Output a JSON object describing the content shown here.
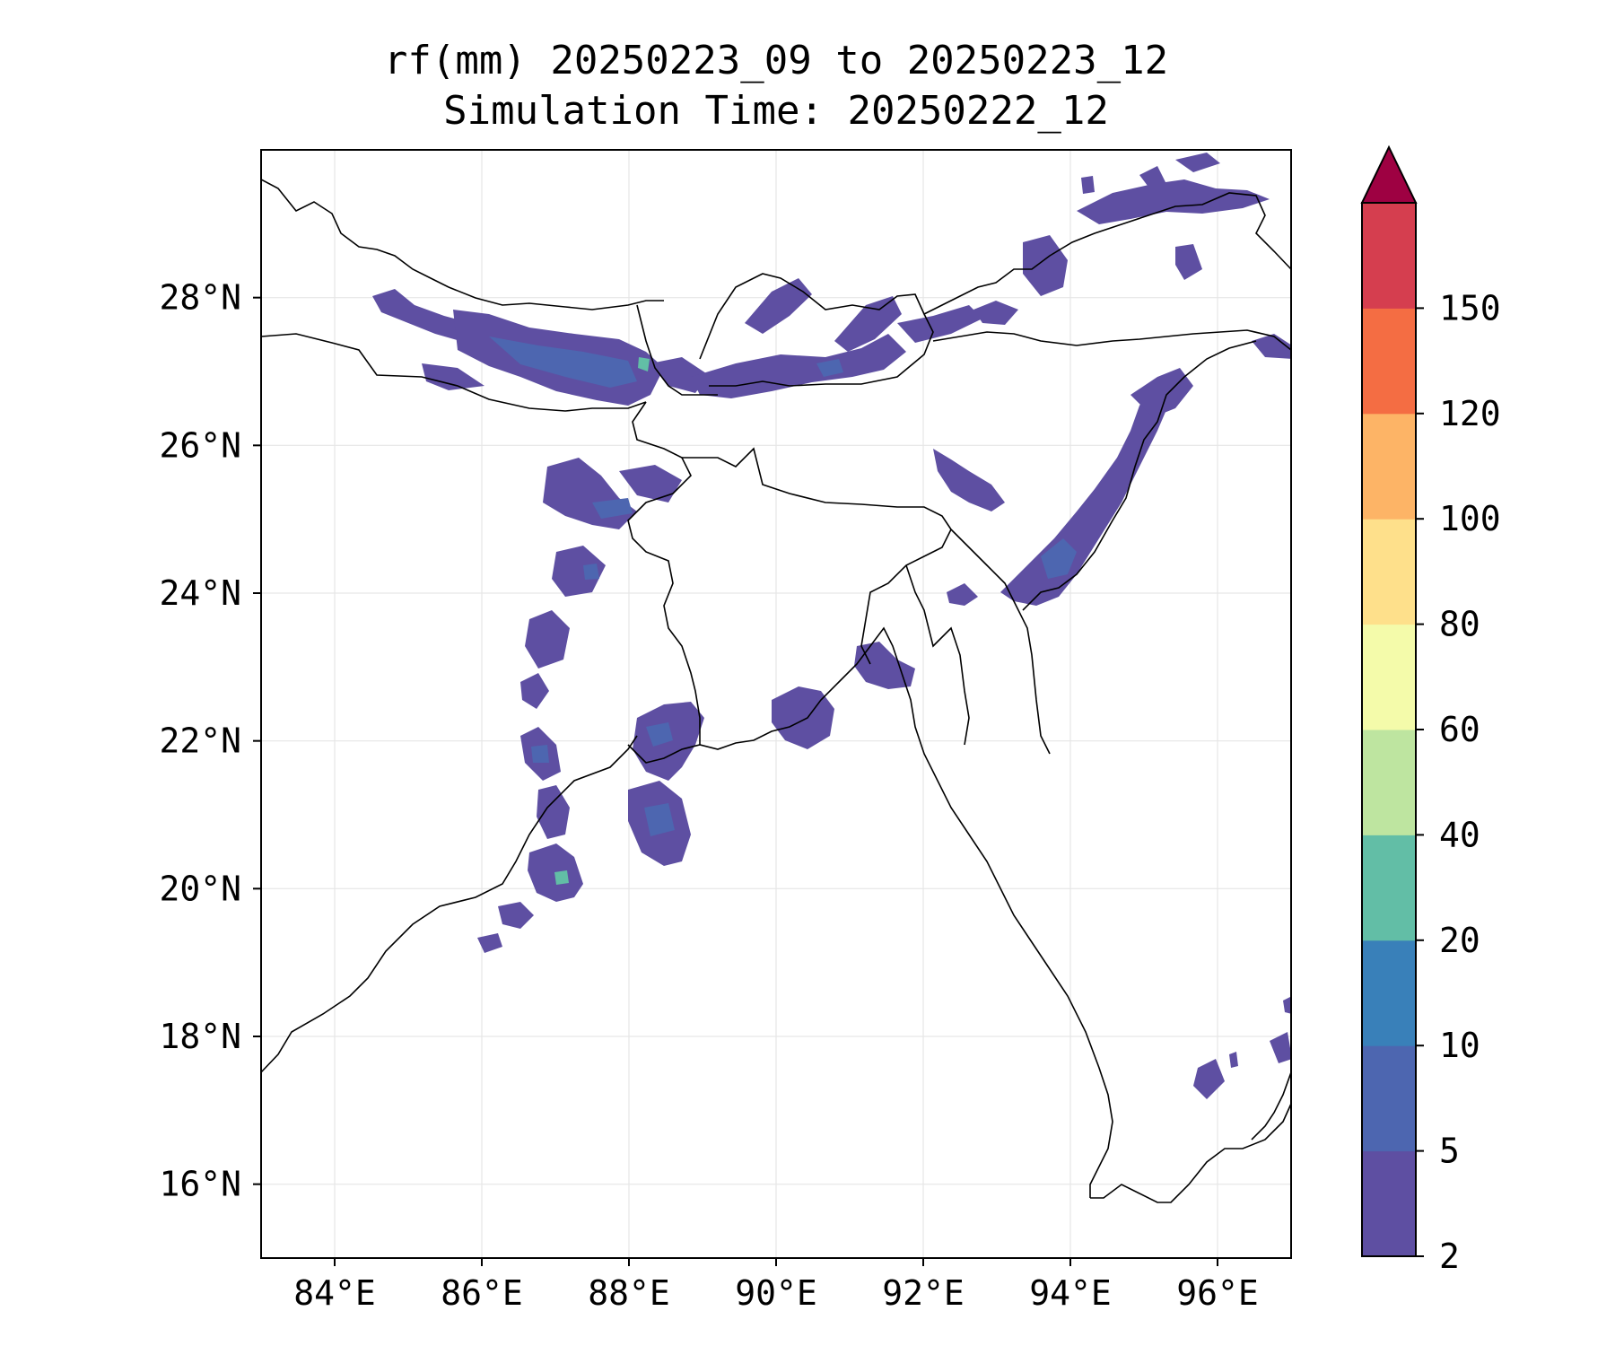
{
  "title": {
    "line1": "rf(mm) 20250223_09 to 20250223_12",
    "line2": "Simulation Time: 20250222_12"
  },
  "map": {
    "lon_range": [
      83,
      97
    ],
    "lat_range": [
      15,
      30
    ],
    "x_ticks": [
      "84°E",
      "86°E",
      "88°E",
      "90°E",
      "92°E",
      "94°E",
      "96°E"
    ],
    "y_ticks": [
      "16°N",
      "18°N",
      "20°N",
      "22°N",
      "24°N",
      "26°N",
      "28°N"
    ],
    "gridlines": true,
    "coastline_color": "#000000"
  },
  "colorbar": {
    "levels": [
      "2",
      "5",
      "10",
      "20",
      "40",
      "60",
      "80",
      "100",
      "120",
      "150"
    ],
    "colors": [
      "#5e4fa2",
      "#4d66b0",
      "#3980b9",
      "#62bea6",
      "#bee5a0",
      "#f4fbaa",
      "#fee08b",
      "#fdb466",
      "#f46d43",
      "#d53e4f"
    ],
    "extend_color": "#9e0142",
    "extend": "max"
  },
  "rain_colors": {
    "light": "#5e4fa2",
    "medium": "#4d66b0",
    "heavy": "#3980b9",
    "peak": "#62bea6"
  }
}
